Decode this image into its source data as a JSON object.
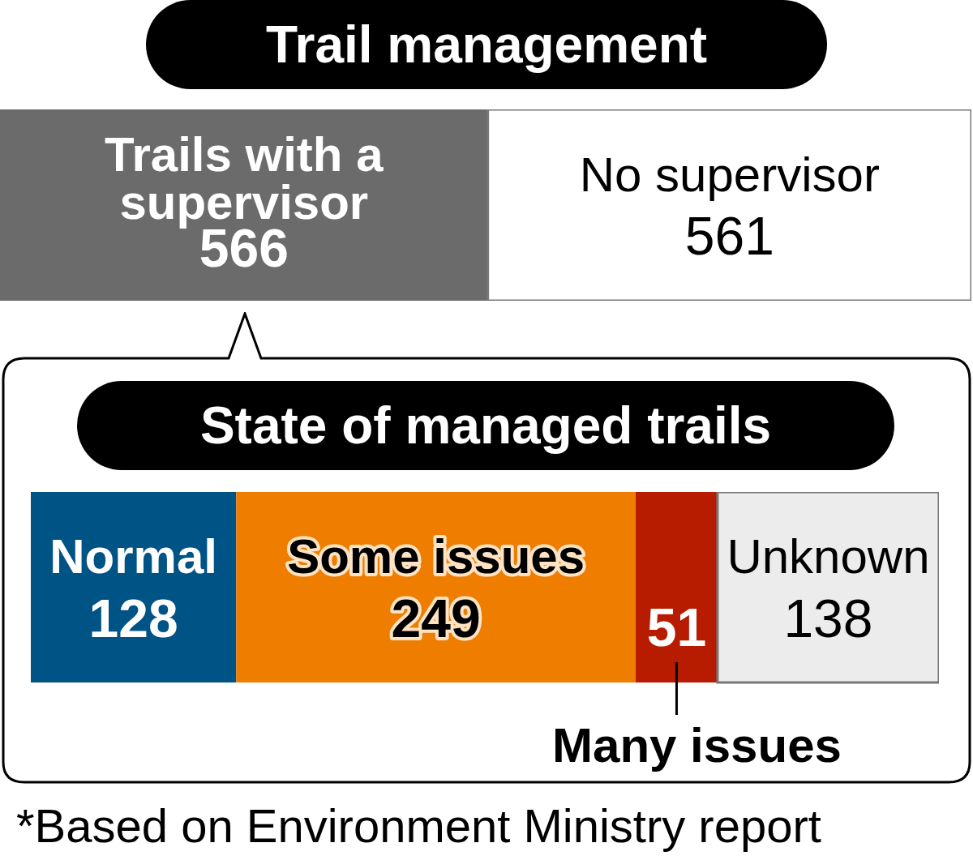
{
  "chart_data": [
    {
      "type": "bar",
      "orientation": "horizontal",
      "stacked": true,
      "title": "Trail management",
      "categories": [
        null
      ],
      "data_labels": true,
      "series": [
        {
          "name": "Trails with a supervisor",
          "color": "#6b6b6b",
          "values": [
            566
          ]
        },
        {
          "name": "No supervisor",
          "color": "#ffffff",
          "values": [
            561
          ]
        }
      ]
    },
    {
      "type": "bar",
      "orientation": "horizontal",
      "stacked": true,
      "title": "State of managed trails",
      "categories": [
        null
      ],
      "data_labels": true,
      "series": [
        {
          "name": "Normal",
          "color": "#005385",
          "values": [
            128
          ]
        },
        {
          "name": "Some issues",
          "color": "#ee7d00",
          "values": [
            249
          ]
        },
        {
          "name": "Many issues",
          "color": "#b81c00",
          "values": [
            51
          ]
        },
        {
          "name": "Unknown",
          "color": "#ececec",
          "values": [
            138
          ]
        }
      ],
      "annotations": [
        "*Based on Environment Ministry report"
      ]
    }
  ]
}
